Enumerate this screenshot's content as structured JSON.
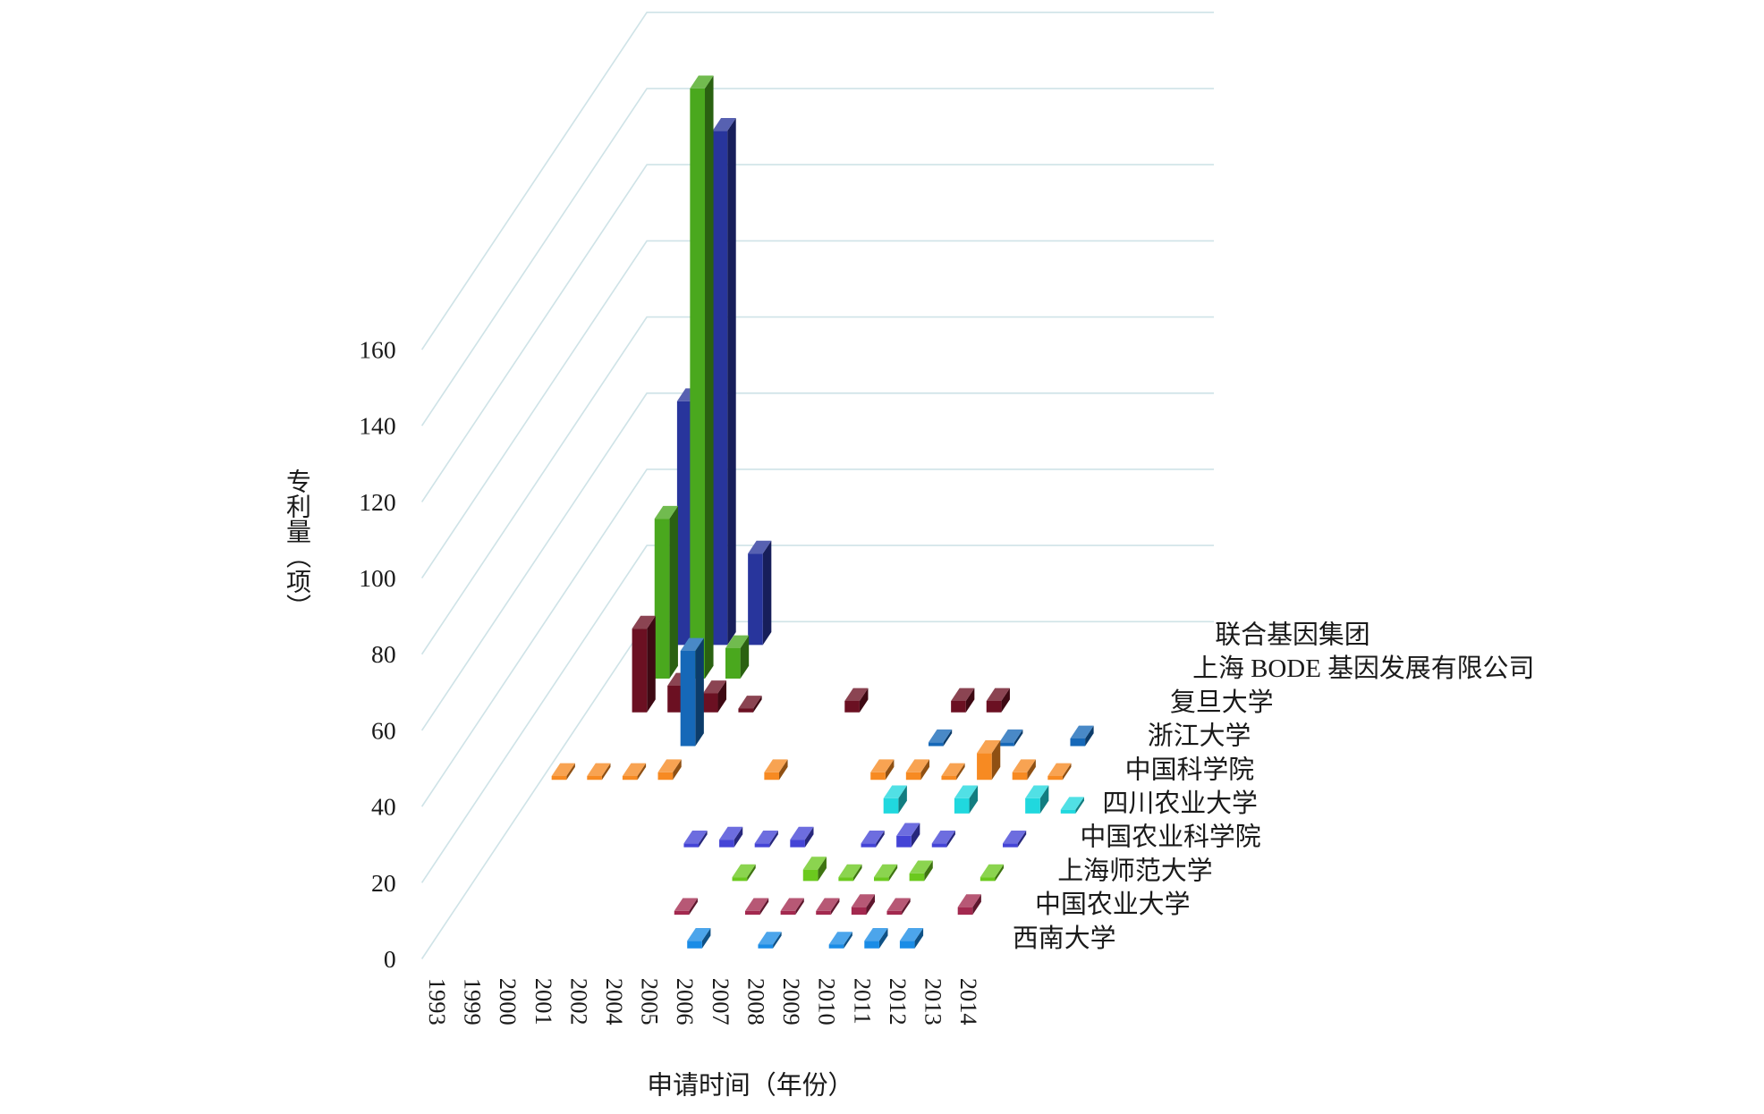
{
  "chart_data": {
    "type": "bar",
    "xlabel": "申请时间（年份）",
    "ylabel": "专利量（项）",
    "ylim": [
      0,
      160
    ],
    "yticks": [
      0,
      20,
      40,
      60,
      80,
      100,
      120,
      140,
      160
    ],
    "grid": true,
    "categories": [
      "1993",
      "1999",
      "2000",
      "2001",
      "2002",
      "2004",
      "2005",
      "2006",
      "2007",
      "2008",
      "2009",
      "2010",
      "2011",
      "2012",
      "2013",
      "2014"
    ],
    "series": [
      {
        "name": "西南大学",
        "color": "#1a8ce6",
        "values": [
          0,
          0,
          0,
          0,
          0,
          0,
          0,
          2,
          0,
          1,
          0,
          1,
          2,
          2,
          0,
          0
        ]
      },
      {
        "name": "中国农业大学",
        "color": "#a3294f",
        "values": [
          0,
          0,
          0,
          0,
          0,
          0,
          1,
          0,
          1,
          1,
          1,
          2,
          1,
          0,
          2,
          0
        ]
      },
      {
        "name": "上海师范大学",
        "color": "#6bc91e",
        "values": [
          0,
          0,
          0,
          0,
          0,
          0,
          0,
          1,
          0,
          3,
          1,
          1,
          2,
          0,
          1,
          0
        ]
      },
      {
        "name": "中国农业科学院",
        "color": "#4444d6",
        "values": [
          0,
          0,
          0,
          0,
          0,
          1,
          2,
          1,
          2,
          0,
          1,
          3,
          1,
          0,
          1,
          0
        ]
      },
      {
        "name": "四川农业大学",
        "color": "#20d8de",
        "values": [
          0,
          0,
          0,
          0,
          0,
          0,
          0,
          0,
          0,
          0,
          4,
          0,
          4,
          0,
          4,
          1
        ]
      },
      {
        "name": "中国科学院",
        "color": "#f78a22",
        "values": [
          1,
          1,
          1,
          2,
          0,
          0,
          2,
          0,
          0,
          2,
          2,
          1,
          7,
          2,
          1,
          0
        ]
      },
      {
        "name": "浙江大学",
        "color": "#1668b8",
        "values": [
          0,
          0,
          0,
          25,
          0,
          0,
          0,
          0,
          0,
          0,
          1,
          0,
          1,
          0,
          2,
          0
        ]
      },
      {
        "name": "复旦大学",
        "color": "#6b1022",
        "values": [
          0,
          22,
          7,
          5,
          1,
          0,
          0,
          3,
          0,
          0,
          3,
          3,
          0,
          0,
          0,
          0
        ]
      },
      {
        "name": "上海 BODE 基因发展有限公司",
        "color": "#4aa81e",
        "values": [
          0,
          42,
          155,
          8,
          0,
          0,
          0,
          0,
          0,
          0,
          0,
          0,
          0,
          0,
          0,
          0
        ]
      },
      {
        "name": "联合基因集团",
        "color": "#28359c",
        "values": [
          0,
          64,
          135,
          24,
          0,
          0,
          0,
          0,
          0,
          0,
          0,
          0,
          0,
          0,
          0,
          0
        ]
      }
    ]
  }
}
